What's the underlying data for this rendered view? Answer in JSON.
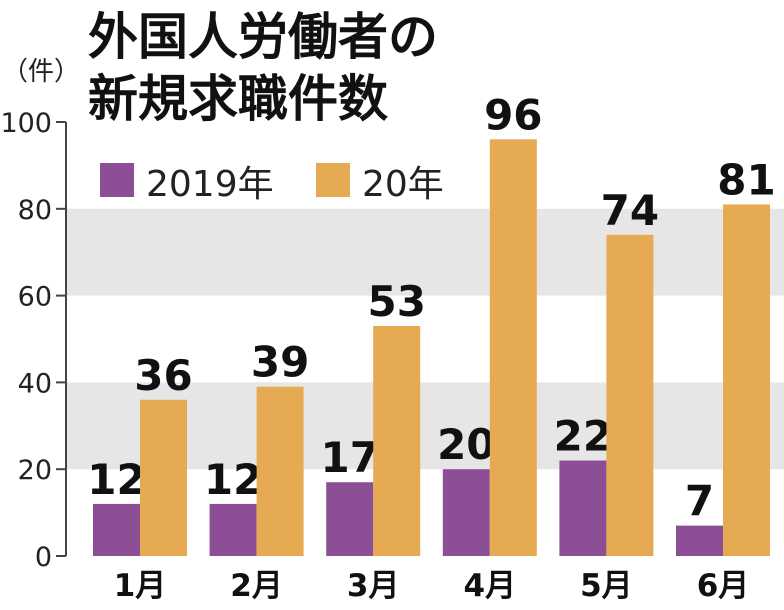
{
  "chart_data": {
    "type": "bar",
    "title_lines": [
      "外国人労働者の",
      "新規求職件数"
    ],
    "unit": "（件）",
    "categories": [
      "1月",
      "2月",
      "3月",
      "4月",
      "5月",
      "6月"
    ],
    "series": [
      {
        "name": "2019年",
        "values": [
          12,
          12,
          17,
          20,
          22,
          7
        ],
        "color": "#8c4f96"
      },
      {
        "name": "20年",
        "values": [
          36,
          39,
          53,
          96,
          74,
          81
        ],
        "color": "#e5aa52"
      }
    ],
    "ylim": [
      0,
      100
    ],
    "yticks": [
      0,
      20,
      40,
      60,
      80,
      100
    ],
    "grid": "alternating shaded bands",
    "legend_position": "top-left",
    "band_color": "#e6e6e6"
  }
}
